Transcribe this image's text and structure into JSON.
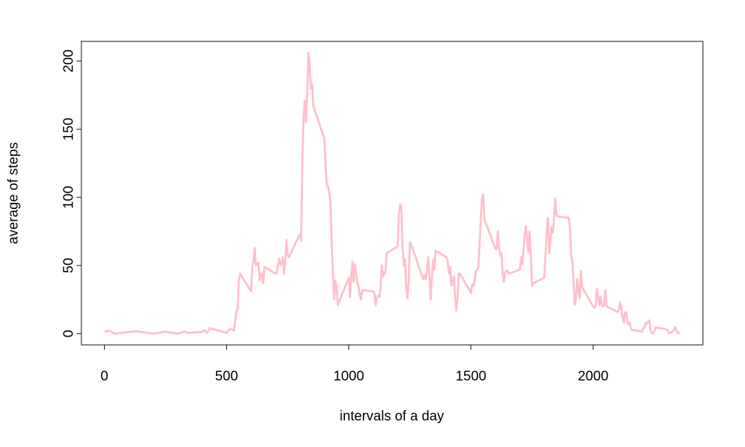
{
  "chart_data": {
    "type": "line",
    "xlabel": "intervals of a day",
    "ylabel": "average of steps",
    "color": "#ffc0cb",
    "xlim": [
      -94.2,
      2449.2
    ],
    "ylim": [
      -8.25,
      214.4
    ],
    "xticks": [
      0,
      500,
      1000,
      1500,
      2000
    ],
    "yticks": [
      0,
      50,
      100,
      150,
      200
    ],
    "x": [
      0,
      25,
      40,
      130,
      200,
      250,
      300,
      330,
      340,
      400,
      410,
      420,
      430,
      440,
      450,
      500,
      510,
      520,
      530,
      540,
      545,
      550,
      555,
      600,
      605,
      610,
      615,
      620,
      630,
      635,
      640,
      645,
      650,
      655,
      700,
      705,
      710,
      715,
      720,
      725,
      730,
      735,
      740,
      745,
      750,
      755,
      800,
      805,
      810,
      815,
      820,
      825,
      830,
      835,
      840,
      845,
      850,
      855,
      900,
      905,
      910,
      915,
      920,
      925,
      930,
      935,
      940,
      945,
      950,
      955,
      1000,
      1005,
      1010,
      1015,
      1020,
      1025,
      1030,
      1035,
      1040,
      1045,
      1050,
      1055,
      1100,
      1105,
      1110,
      1115,
      1120,
      1125,
      1130,
      1135,
      1140,
      1145,
      1150,
      1155,
      1200,
      1205,
      1210,
      1215,
      1220,
      1225,
      1230,
      1235,
      1240,
      1245,
      1250,
      1255,
      1300,
      1305,
      1310,
      1315,
      1320,
      1325,
      1330,
      1335,
      1340,
      1345,
      1350,
      1355,
      1400,
      1405,
      1410,
      1415,
      1420,
      1425,
      1430,
      1435,
      1440,
      1445,
      1450,
      1455,
      1500,
      1505,
      1510,
      1515,
      1520,
      1525,
      1530,
      1535,
      1540,
      1545,
      1550,
      1555,
      1600,
      1605,
      1610,
      1615,
      1620,
      1625,
      1630,
      1635,
      1640,
      1645,
      1650,
      1655,
      1700,
      1705,
      1710,
      1715,
      1720,
      1725,
      1730,
      1735,
      1740,
      1745,
      1750,
      1755,
      1800,
      1805,
      1810,
      1815,
      1820,
      1825,
      1830,
      1835,
      1840,
      1845,
      1850,
      1855,
      1900,
      1905,
      1910,
      1915,
      1920,
      1925,
      1930,
      1935,
      1940,
      1945,
      1950,
      1955,
      2000,
      2005,
      2010,
      2015,
      2020,
      2025,
      2030,
      2035,
      2040,
      2045,
      2050,
      2055,
      2100,
      2105,
      2110,
      2115,
      2120,
      2125,
      2130,
      2135,
      2140,
      2145,
      2150,
      2155,
      2200,
      2205,
      2210,
      2215,
      2220,
      2225,
      2230,
      2235,
      2240,
      2245,
      2250,
      2255,
      2300,
      2305,
      2310,
      2315,
      2320,
      2325,
      2330,
      2335,
      2340,
      2345,
      2350,
      2355
    ],
    "values": [
      1.7,
      2.1,
      0,
      1.8,
      0,
      1.5,
      0,
      1.6,
      0.6,
      1.2,
      2.6,
      0.3,
      4.1,
      3.5,
      3.1,
      0.5,
      3,
      3.3,
      2.1,
      16,
      18,
      39,
      44,
      31,
      49,
      53,
      63,
      50,
      52,
      39,
      44,
      44,
      37,
      49,
      44,
      44,
      51,
      55,
      50,
      51,
      56,
      44,
      52,
      69,
      58,
      56,
      73,
      68,
      129,
      158,
      171,
      155,
      177,
      206,
      196,
      180,
      183,
      167,
      143,
      124,
      109,
      108,
      104,
      96,
      66,
      45,
      25,
      39,
      35,
      21,
      41,
      27,
      42,
      53,
      38,
      51,
      44,
      37,
      35,
      28,
      25,
      32,
      31,
      30,
      21,
      26,
      28,
      27,
      33,
      50,
      42,
      44,
      46,
      59,
      64,
      88,
      95,
      93,
      64,
      50,
      55,
      33,
      26,
      38,
      67,
      66,
      42,
      40,
      43,
      40,
      46,
      56,
      43,
      25,
      40,
      54,
      47,
      61,
      56,
      52,
      44,
      49,
      35,
      38,
      42,
      27,
      17,
      26,
      44,
      44,
      30,
      36,
      35,
      39,
      46,
      47,
      48,
      65,
      83,
      99,
      102,
      84,
      62,
      62,
      75,
      63,
      57,
      59,
      43,
      38,
      45,
      46,
      46,
      44,
      47,
      56,
      51,
      61,
      73,
      79,
      69,
      60,
      75,
      57,
      35,
      37,
      41,
      58,
      75,
      85,
      59,
      68,
      78,
      74,
      85,
      99,
      87,
      86,
      85,
      78,
      58,
      53,
      36,
      21,
      27,
      40,
      30,
      26,
      46,
      34,
      20,
      19,
      20,
      33,
      27,
      21,
      27,
      21,
      20,
      21,
      32,
      20,
      16,
      17,
      23,
      19,
      12,
      8,
      15,
      16,
      8,
      7,
      8,
      3,
      1.5,
      4,
      4.7,
      8,
      7,
      8.7,
      9.8,
      2,
      0.3,
      0.1,
      1.6,
      4.6,
      3.3,
      2.8,
      0,
      0.8,
      1,
      1.6,
      2.6,
      4.7,
      3.3,
      0.6,
      0.2,
      1.1
    ]
  }
}
